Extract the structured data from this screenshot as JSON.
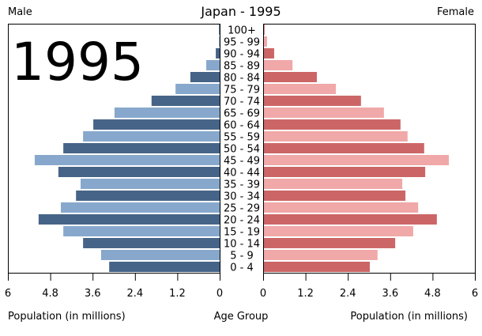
{
  "chart_data": {
    "type": "bar",
    "title": "Japan - 1995",
    "watermark_year": "1995",
    "left_label": "Male",
    "right_label": "Female",
    "xlabel_left": "Population (in millions)",
    "xlabel_center": "Age Group",
    "xlabel_right": "Population (in millions)",
    "xlim": [
      0,
      6
    ],
    "ticks": [
      "0",
      "1.2",
      "2.4",
      "3.6",
      "4.8",
      "6"
    ],
    "tick_values": [
      0,
      1.2,
      2.4,
      3.6,
      4.8,
      6
    ],
    "categories": [
      "0 - 4",
      "5 - 9",
      "10 - 14",
      "15 - 19",
      "20 - 24",
      "25 - 29",
      "30 - 34",
      "35 - 39",
      "40 - 44",
      "45 - 49",
      "50 - 54",
      "55 - 59",
      "60 - 64",
      "65 - 69",
      "70 - 74",
      "75 - 79",
      "80 - 84",
      "85 - 89",
      "90 - 94",
      "95 - 99",
      "100+"
    ],
    "series": [
      {
        "name": "Male",
        "colors": [
          "#466487",
          "#87a8cc"
        ],
        "values": [
          3.13,
          3.36,
          3.87,
          4.43,
          5.13,
          4.5,
          4.07,
          3.94,
          4.57,
          5.24,
          4.43,
          3.87,
          3.58,
          2.98,
          1.93,
          1.25,
          0.83,
          0.38,
          0.11,
          0.02,
          0.003
        ]
      },
      {
        "name": "Female",
        "colors": [
          "#cc6666",
          "#f0a8a8"
        ],
        "values": [
          3.0,
          3.22,
          3.72,
          4.23,
          4.9,
          4.37,
          4.01,
          3.92,
          4.57,
          5.24,
          4.54,
          4.07,
          3.87,
          3.4,
          2.75,
          2.04,
          1.5,
          0.81,
          0.29,
          0.09,
          0.01
        ]
      }
    ]
  }
}
